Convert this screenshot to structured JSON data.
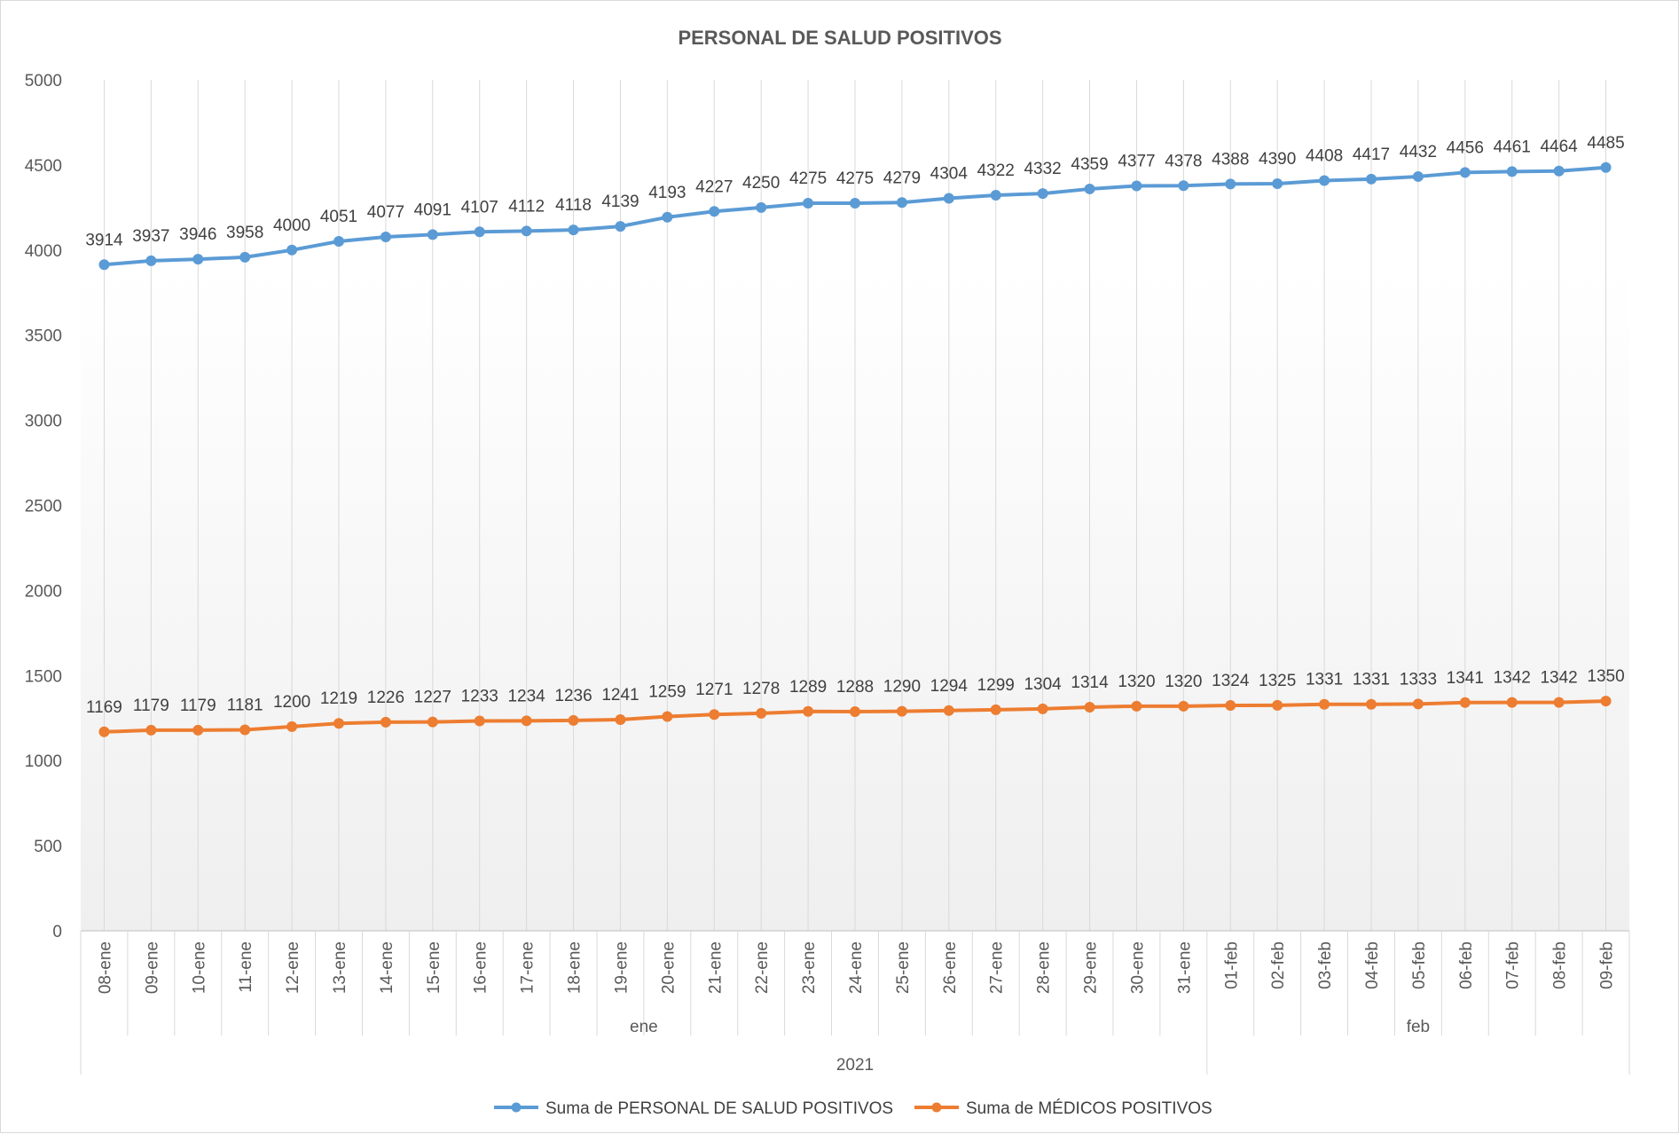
{
  "chart_data": {
    "type": "line",
    "title": "PERSONAL DE SALUD POSITIVOS",
    "xlabel": "",
    "ylabel": "",
    "ylim": [
      0,
      5000
    ],
    "yticks": [
      0,
      500,
      1000,
      1500,
      2000,
      2500,
      3000,
      3500,
      4000,
      4500,
      5000
    ],
    "grid": "vertical",
    "legend": "bottom",
    "categories": [
      "08-ene",
      "09-ene",
      "10-ene",
      "11-ene",
      "12-ene",
      "13-ene",
      "14-ene",
      "15-ene",
      "16-ene",
      "17-ene",
      "18-ene",
      "19-ene",
      "20-ene",
      "21-ene",
      "22-ene",
      "23-ene",
      "24-ene",
      "25-ene",
      "26-ene",
      "27-ene",
      "28-ene",
      "29-ene",
      "30-ene",
      "31-ene",
      "01-feb",
      "02-feb",
      "03-feb",
      "04-feb",
      "05-feb",
      "06-feb",
      "07-feb",
      "08-feb",
      "09-feb"
    ],
    "groups": [
      {
        "label": "ene",
        "count": 24
      },
      {
        "label": "feb",
        "count": 9
      }
    ],
    "super_group": "2021",
    "series": [
      {
        "name": "Suma de PERSONAL DE SALUD POSITIVOS",
        "color": "#5B9BD5",
        "values": [
          3914,
          3937,
          3946,
          3958,
          4000,
          4051,
          4077,
          4091,
          4107,
          4112,
          4118,
          4139,
          4193,
          4227,
          4250,
          4275,
          4275,
          4279,
          4304,
          4322,
          4332,
          4359,
          4377,
          4378,
          4388,
          4390,
          4408,
          4417,
          4432,
          4456,
          4461,
          4464,
          4485
        ]
      },
      {
        "name": "Suma de MÉDICOS POSITIVOS",
        "color": "#ED7D31",
        "values": [
          1169,
          1179,
          1179,
          1181,
          1200,
          1219,
          1226,
          1227,
          1233,
          1234,
          1236,
          1241,
          1259,
          1271,
          1278,
          1289,
          1288,
          1290,
          1294,
          1299,
          1304,
          1314,
          1320,
          1320,
          1324,
          1325,
          1331,
          1331,
          1333,
          1341,
          1342,
          1342,
          1350
        ]
      }
    ]
  }
}
